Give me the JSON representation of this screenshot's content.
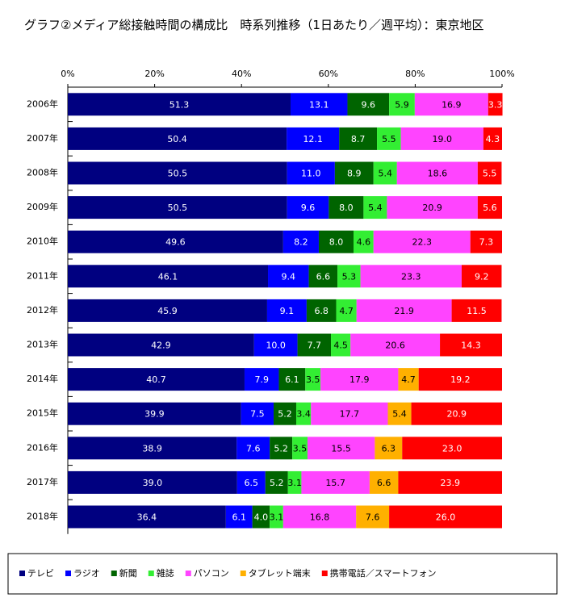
{
  "chart_data": {
    "type": "stacked-bar-horizontal",
    "title": "グラフ②メディア総接触時間の構成比　時系列推移（1日あたり／週平均）：東京地区",
    "categories": [
      "2006年",
      "2007年",
      "2008年",
      "2009年",
      "2010年",
      "2011年",
      "2012年",
      "2013年",
      "2014年",
      "2015年",
      "2016年",
      "2017年",
      "2018年"
    ],
    "xlim": [
      0,
      100
    ],
    "xticks": [
      {
        "value": 0,
        "label": "0%"
      },
      {
        "value": 20,
        "label": "20%"
      },
      {
        "value": 40,
        "label": "40%"
      },
      {
        "value": 60,
        "label": "60%"
      },
      {
        "value": 80,
        "label": "80%"
      },
      {
        "value": 100,
        "label": "100%"
      }
    ],
    "legend": "bottom",
    "series": [
      {
        "name": "テレビ",
        "color": "#000080",
        "values": [
          51.3,
          50.4,
          50.5,
          50.5,
          49.6,
          46.1,
          45.9,
          42.9,
          40.7,
          39.9,
          38.9,
          39.0,
          36.4
        ],
        "value_labels": [
          "51.3",
          "50.4",
          "50.5",
          "50.5",
          "49.6",
          "46.1",
          "45.9",
          "42.9",
          "40.7",
          "39.9",
          "38.9",
          "39.0",
          "36.4"
        ]
      },
      {
        "name": "ラジオ",
        "color": "#0000ff",
        "values": [
          13.1,
          12.1,
          11.0,
          9.6,
          8.2,
          9.4,
          9.1,
          10.0,
          7.9,
          7.5,
          7.6,
          6.5,
          6.1
        ],
        "value_labels": [
          "13.1",
          "12.1",
          "11.0",
          "9.6",
          "8.2",
          "9.4",
          "9.1",
          "10.0",
          "7.9",
          "7.5",
          "7.6",
          "6.5",
          "6.1"
        ]
      },
      {
        "name": "新聞",
        "color": "#006400",
        "values": [
          9.6,
          8.7,
          8.9,
          8.0,
          8.0,
          6.6,
          6.8,
          7.7,
          6.1,
          5.2,
          5.2,
          5.2,
          4.0
        ],
        "value_labels": [
          "9.6",
          "8.7",
          "8.9",
          "8.0",
          "8.0",
          "6.6",
          "6.8",
          "7.7",
          "6.1",
          "5.2",
          "5.2",
          "5.2",
          "4.0"
        ]
      },
      {
        "name": "雑誌",
        "color": "#33ee33",
        "values": [
          5.9,
          5.5,
          5.4,
          5.4,
          4.6,
          5.3,
          4.7,
          4.5,
          3.5,
          3.4,
          3.5,
          3.1,
          3.1
        ],
        "value_labels": [
          "5.9",
          "5.5",
          "5.4",
          "5.4",
          "4.6",
          "5.3",
          "4.7",
          "4.5",
          "3.5",
          "3.4",
          "3.5",
          "3.1",
          "3.1"
        ]
      },
      {
        "name": "パソコン",
        "color": "#ff44ff",
        "values": [
          16.9,
          19.0,
          18.6,
          20.9,
          22.3,
          23.3,
          21.9,
          20.6,
          17.9,
          17.7,
          15.5,
          15.7,
          16.8
        ],
        "value_labels": [
          "16.9",
          "19.0",
          "18.6",
          "20.9",
          "22.3",
          "23.3",
          "21.9",
          "20.6",
          "17.9",
          "17.7",
          "15.5",
          "15.7",
          "16.8"
        ]
      },
      {
        "name": "タブレット端末",
        "color": "#ffb000",
        "values": [
          null,
          null,
          null,
          null,
          null,
          null,
          null,
          null,
          4.7,
          5.4,
          6.3,
          6.6,
          7.6
        ],
        "value_labels": [
          null,
          null,
          null,
          null,
          null,
          null,
          null,
          null,
          "4.7",
          "5.4",
          "6.3",
          "6.6",
          "7.6"
        ]
      },
      {
        "name": "携帯電話／スマートフォン",
        "color": "#ff0000",
        "values": [
          3.3,
          4.3,
          5.5,
          5.6,
          7.3,
          9.2,
          11.5,
          14.3,
          19.2,
          20.9,
          23.0,
          23.9,
          26.0
        ],
        "value_labels": [
          "3.3",
          "4.3",
          "5.5",
          "5.6",
          "7.3",
          "9.2",
          "11.5",
          "14.3",
          "19.2",
          "20.9",
          "23.0",
          "23.9",
          "26.0"
        ]
      }
    ]
  }
}
